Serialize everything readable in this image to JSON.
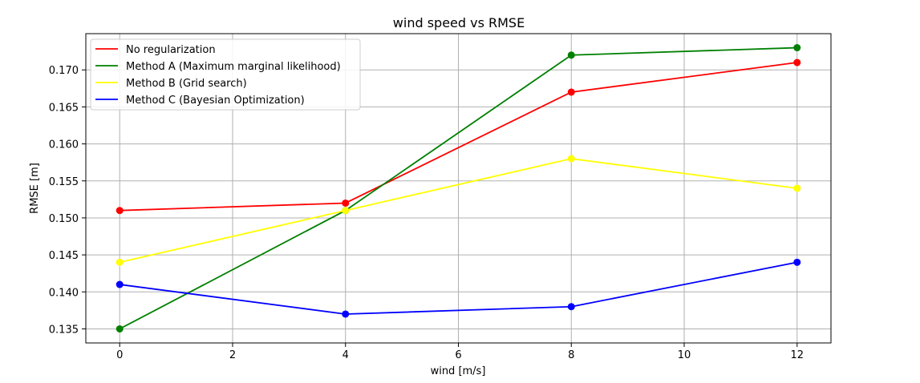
{
  "chart_data": {
    "type": "line",
    "title": "wind speed vs RMSE",
    "xlabel": "wind [m/s]",
    "ylabel": "RMSE [m]",
    "x": [
      0,
      4,
      8,
      12
    ],
    "xlim": [
      -0.6,
      12.6
    ],
    "ylim": [
      0.1331,
      0.1749
    ],
    "xticks": [
      0,
      2,
      4,
      6,
      8,
      10,
      12
    ],
    "yticks": [
      0.135,
      0.14,
      0.145,
      0.15,
      0.155,
      0.16,
      0.165,
      0.17
    ],
    "ytick_labels": [
      "0.135",
      "0.140",
      "0.145",
      "0.150",
      "0.155",
      "0.160",
      "0.165",
      "0.170"
    ],
    "grid": true,
    "legend_position": "top-left",
    "series": [
      {
        "name": "No regularization",
        "color": "#ff0000",
        "values": [
          0.151,
          0.152,
          0.167,
          0.171
        ]
      },
      {
        "name": "Method A (Maximum marginal likelihood)",
        "color": "#008000",
        "values": [
          0.135,
          0.151,
          0.172,
          0.173
        ]
      },
      {
        "name": "Method B (Grid search)",
        "color": "#ffff00",
        "values": [
          0.144,
          0.151,
          0.158,
          0.154
        ]
      },
      {
        "name": "Method C (Bayesian Optimization)",
        "color": "#0000ff",
        "values": [
          0.141,
          0.137,
          0.138,
          0.144
        ]
      }
    ]
  }
}
